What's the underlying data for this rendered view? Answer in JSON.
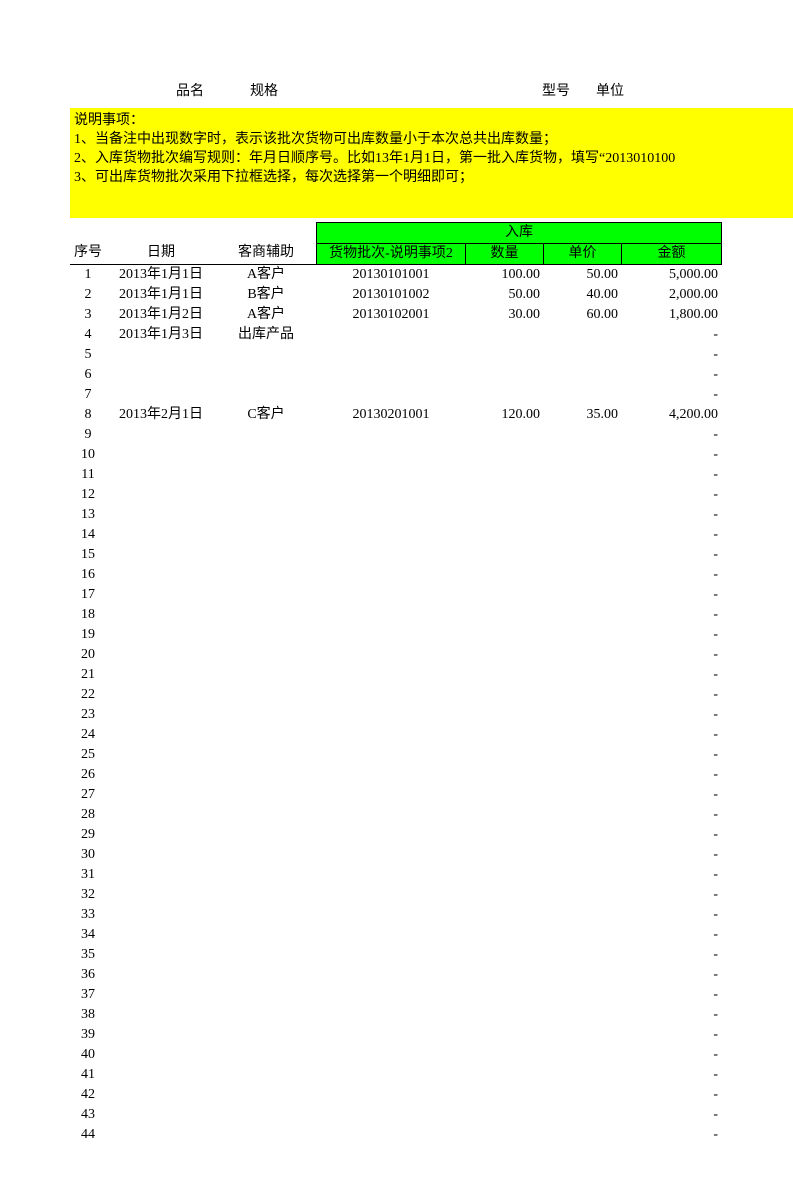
{
  "top_labels": {
    "product_name": "品名",
    "spec": "规格",
    "model": "型号",
    "unit": "单位"
  },
  "notes": {
    "title": "说明事项：",
    "line1": "1、当备注中出现数字时，表示该批次货物可出库数量小于本次总共出库数量；",
    "line2": "2、入库货物批次编写规则：年月日顺序号。比如13年1月1日，第一批入库货物，填写“2013010100",
    "line3": "3、可出库货物批次采用下拉框选择，每次选择第一个明细即可；"
  },
  "headers": {
    "seq": "序号",
    "date": "日期",
    "customer": "客商辅助",
    "inbound_group": "入库",
    "batch": "货物批次-说明事项2",
    "qty": "数量",
    "price": "单价",
    "amount": "金额"
  },
  "colors": {
    "note_bg": "#ffff00",
    "header_bg": "#00ff00",
    "border": "#000000",
    "page_bg": "#ffffff",
    "text": "#000000"
  },
  "dash": "-",
  "row_count": 44,
  "rows": [
    {
      "seq": "1",
      "date": "2013年1月1日",
      "cust": "A客户",
      "batch": "20130101001",
      "qty": "100.00",
      "price": "50.00",
      "amt": "5,000.00"
    },
    {
      "seq": "2",
      "date": "2013年1月1日",
      "cust": "B客户",
      "batch": "20130101002",
      "qty": "50.00",
      "price": "40.00",
      "amt": "2,000.00"
    },
    {
      "seq": "3",
      "date": "2013年1月2日",
      "cust": "A客户",
      "batch": "20130102001",
      "qty": "30.00",
      "price": "60.00",
      "amt": "1,800.00"
    },
    {
      "seq": "4",
      "date": "2013年1月3日",
      "cust": "出库产品",
      "batch": "",
      "qty": "",
      "price": "",
      "amt": "-"
    },
    {
      "seq": "5",
      "date": "",
      "cust": "",
      "batch": "",
      "qty": "",
      "price": "",
      "amt": "-"
    },
    {
      "seq": "6",
      "date": "",
      "cust": "",
      "batch": "",
      "qty": "",
      "price": "",
      "amt": "-"
    },
    {
      "seq": "7",
      "date": "",
      "cust": "",
      "batch": "",
      "qty": "",
      "price": "",
      "amt": "-"
    },
    {
      "seq": "8",
      "date": "2013年2月1日",
      "cust": "C客户",
      "batch": "20130201001",
      "qty": "120.00",
      "price": "35.00",
      "amt": "4,200.00"
    },
    {
      "seq": "9",
      "date": "",
      "cust": "",
      "batch": "",
      "qty": "",
      "price": "",
      "amt": "-"
    },
    {
      "seq": "10",
      "date": "",
      "cust": "",
      "batch": "",
      "qty": "",
      "price": "",
      "amt": "-"
    },
    {
      "seq": "11",
      "date": "",
      "cust": "",
      "batch": "",
      "qty": "",
      "price": "",
      "amt": "-"
    },
    {
      "seq": "12",
      "date": "",
      "cust": "",
      "batch": "",
      "qty": "",
      "price": "",
      "amt": "-"
    },
    {
      "seq": "13",
      "date": "",
      "cust": "",
      "batch": "",
      "qty": "",
      "price": "",
      "amt": "-"
    },
    {
      "seq": "14",
      "date": "",
      "cust": "",
      "batch": "",
      "qty": "",
      "price": "",
      "amt": "-"
    },
    {
      "seq": "15",
      "date": "",
      "cust": "",
      "batch": "",
      "qty": "",
      "price": "",
      "amt": "-"
    },
    {
      "seq": "16",
      "date": "",
      "cust": "",
      "batch": "",
      "qty": "",
      "price": "",
      "amt": "-"
    },
    {
      "seq": "17",
      "date": "",
      "cust": "",
      "batch": "",
      "qty": "",
      "price": "",
      "amt": "-"
    },
    {
      "seq": "18",
      "date": "",
      "cust": "",
      "batch": "",
      "qty": "",
      "price": "",
      "amt": "-"
    },
    {
      "seq": "19",
      "date": "",
      "cust": "",
      "batch": "",
      "qty": "",
      "price": "",
      "amt": "-"
    },
    {
      "seq": "20",
      "date": "",
      "cust": "",
      "batch": "",
      "qty": "",
      "price": "",
      "amt": "-"
    },
    {
      "seq": "21",
      "date": "",
      "cust": "",
      "batch": "",
      "qty": "",
      "price": "",
      "amt": "-"
    },
    {
      "seq": "22",
      "date": "",
      "cust": "",
      "batch": "",
      "qty": "",
      "price": "",
      "amt": "-"
    },
    {
      "seq": "23",
      "date": "",
      "cust": "",
      "batch": "",
      "qty": "",
      "price": "",
      "amt": "-"
    },
    {
      "seq": "24",
      "date": "",
      "cust": "",
      "batch": "",
      "qty": "",
      "price": "",
      "amt": "-"
    },
    {
      "seq": "25",
      "date": "",
      "cust": "",
      "batch": "",
      "qty": "",
      "price": "",
      "amt": "-"
    },
    {
      "seq": "26",
      "date": "",
      "cust": "",
      "batch": "",
      "qty": "",
      "price": "",
      "amt": "-"
    },
    {
      "seq": "27",
      "date": "",
      "cust": "",
      "batch": "",
      "qty": "",
      "price": "",
      "amt": "-"
    },
    {
      "seq": "28",
      "date": "",
      "cust": "",
      "batch": "",
      "qty": "",
      "price": "",
      "amt": "-"
    },
    {
      "seq": "29",
      "date": "",
      "cust": "",
      "batch": "",
      "qty": "",
      "price": "",
      "amt": "-"
    },
    {
      "seq": "30",
      "date": "",
      "cust": "",
      "batch": "",
      "qty": "",
      "price": "",
      "amt": "-"
    },
    {
      "seq": "31",
      "date": "",
      "cust": "",
      "batch": "",
      "qty": "",
      "price": "",
      "amt": "-"
    },
    {
      "seq": "32",
      "date": "",
      "cust": "",
      "batch": "",
      "qty": "",
      "price": "",
      "amt": "-"
    },
    {
      "seq": "33",
      "date": "",
      "cust": "",
      "batch": "",
      "qty": "",
      "price": "",
      "amt": "-"
    },
    {
      "seq": "34",
      "date": "",
      "cust": "",
      "batch": "",
      "qty": "",
      "price": "",
      "amt": "-"
    },
    {
      "seq": "35",
      "date": "",
      "cust": "",
      "batch": "",
      "qty": "",
      "price": "",
      "amt": "-"
    },
    {
      "seq": "36",
      "date": "",
      "cust": "",
      "batch": "",
      "qty": "",
      "price": "",
      "amt": "-"
    },
    {
      "seq": "37",
      "date": "",
      "cust": "",
      "batch": "",
      "qty": "",
      "price": "",
      "amt": "-"
    },
    {
      "seq": "38",
      "date": "",
      "cust": "",
      "batch": "",
      "qty": "",
      "price": "",
      "amt": "-"
    },
    {
      "seq": "39",
      "date": "",
      "cust": "",
      "batch": "",
      "qty": "",
      "price": "",
      "amt": "-"
    },
    {
      "seq": "40",
      "date": "",
      "cust": "",
      "batch": "",
      "qty": "",
      "price": "",
      "amt": "-"
    },
    {
      "seq": "41",
      "date": "",
      "cust": "",
      "batch": "",
      "qty": "",
      "price": "",
      "amt": "-"
    },
    {
      "seq": "42",
      "date": "",
      "cust": "",
      "batch": "",
      "qty": "",
      "price": "",
      "amt": "-"
    },
    {
      "seq": "43",
      "date": "",
      "cust": "",
      "batch": "",
      "qty": "",
      "price": "",
      "amt": "-"
    },
    {
      "seq": "44",
      "date": "",
      "cust": "",
      "batch": "",
      "qty": "",
      "price": "",
      "amt": "-"
    }
  ]
}
